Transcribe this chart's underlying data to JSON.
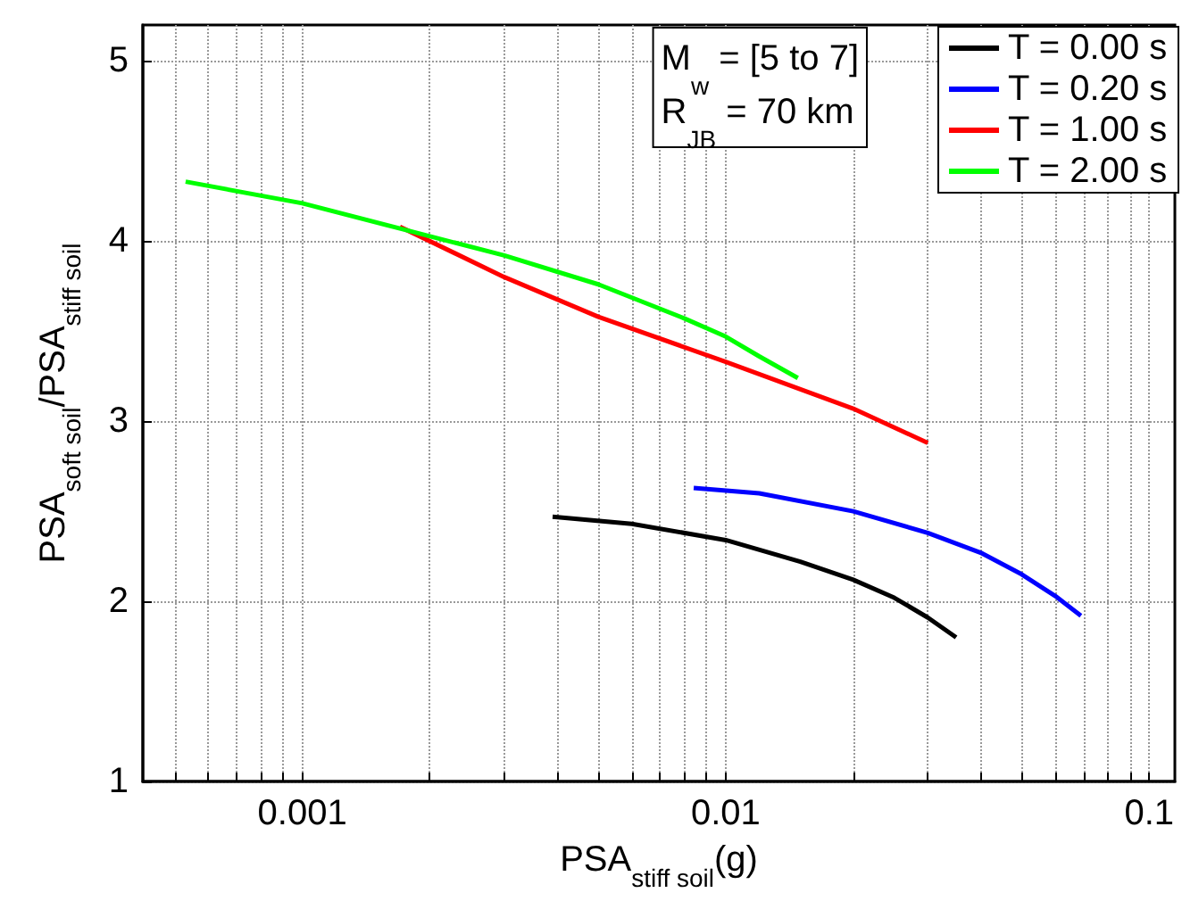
{
  "chart_data": {
    "type": "line",
    "xlabel": "PSA$_{stiff soil}$(g)",
    "ylabel": "PSA$_{soft soil}$/PSA$_{stiff soil}$",
    "log": "x",
    "grid": true,
    "legend": "top right",
    "line_style": "solid",
    "marker": "none",
    "xlim": [
      0.00042,
      0.115
    ],
    "ylim": [
      1,
      5.2
    ],
    "xticks": [
      {
        "value": 0.0005,
        "label": null
      },
      {
        "value": 0.0006,
        "label": null
      },
      {
        "value": 0.0007,
        "label": null
      },
      {
        "value": 0.0008,
        "label": null
      },
      {
        "value": 0.0009,
        "label": null
      },
      0.001,
      {
        "value": 0.002,
        "label": null
      },
      {
        "value": 0.003,
        "label": null
      },
      {
        "value": 0.004,
        "label": null
      },
      {
        "value": 0.005,
        "label": null
      },
      {
        "value": 0.006,
        "label": null
      },
      {
        "value": 0.007,
        "label": null
      },
      {
        "value": 0.008,
        "label": null
      },
      {
        "value": 0.009,
        "label": null
      },
      0.01,
      {
        "value": 0.02,
        "label": null
      },
      {
        "value": 0.03,
        "label": null
      },
      {
        "value": 0.04,
        "label": null
      },
      {
        "value": 0.05,
        "label": null
      },
      {
        "value": 0.06,
        "label": null
      },
      {
        "value": 0.07,
        "label": null
      },
      {
        "value": 0.08,
        "label": null
      },
      {
        "value": 0.09,
        "label": null
      },
      0.1
    ],
    "yticks": [
      1,
      2,
      3,
      4,
      5
    ],
    "annotations": [
      "M$_{w}$ = [5 to 7]",
      "R$_{JB}$ = 70 km"
    ],
    "series": [
      {
        "name": "T = 0.00 s",
        "color": "#000000",
        "x": [
          0.0039,
          0.006,
          0.01,
          0.015,
          0.02,
          0.025,
          0.03,
          0.035
        ],
        "values": [
          2.47,
          2.43,
          2.34,
          2.22,
          2.12,
          2.02,
          1.91,
          1.8
        ]
      },
      {
        "name": "T = 0.20 s",
        "color": "#0000ff",
        "x": [
          0.0084,
          0.012,
          0.02,
          0.03,
          0.04,
          0.05,
          0.06,
          0.069
        ],
        "values": [
          2.63,
          2.6,
          2.5,
          2.38,
          2.27,
          2.15,
          2.03,
          1.92
        ]
      },
      {
        "name": "T = 1.00 s",
        "color": "#ff0000",
        "x": [
          0.0017,
          0.003,
          0.005,
          0.01,
          0.02,
          0.03
        ],
        "values": [
          4.08,
          3.8,
          3.58,
          3.33,
          3.07,
          2.88
        ]
      },
      {
        "name": "T = 2.00 s",
        "color": "#00ff00",
        "x": [
          0.00053,
          0.001,
          0.0017,
          0.003,
          0.005,
          0.008,
          0.01,
          0.012,
          0.0148
        ],
        "values": [
          4.33,
          4.21,
          4.07,
          3.92,
          3.76,
          3.57,
          3.47,
          3.36,
          3.24
        ]
      }
    ]
  }
}
